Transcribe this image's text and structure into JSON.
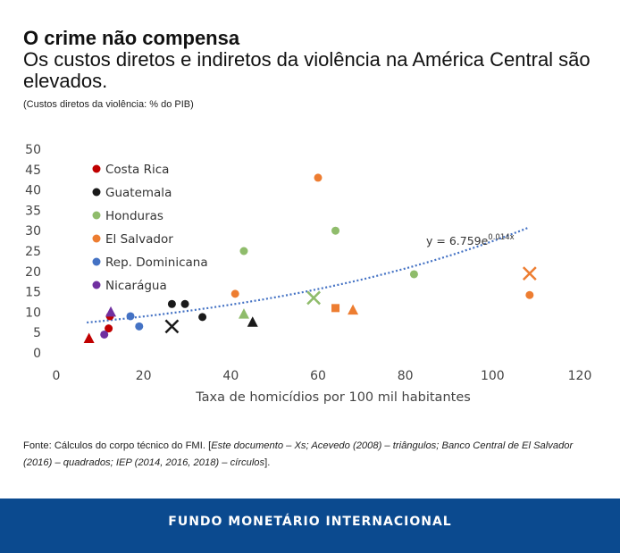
{
  "header": {
    "title": "O crime não compensa",
    "subtitle": "Os custos diretos e indiretos da violência na América Central são elevados.",
    "note": "(Custos diretos da violência: % do PIB)"
  },
  "chart_data": {
    "type": "scatter",
    "xlabel": "Taxa de homicídios por 100 mil habitantes",
    "ylabel": "",
    "xlim": [
      0,
      120
    ],
    "ylim": [
      0,
      50
    ],
    "xticks": [
      0,
      20,
      40,
      60,
      80,
      100,
      120
    ],
    "yticks": [
      0,
      5,
      10,
      15,
      20,
      25,
      30,
      35,
      40,
      45,
      50
    ],
    "grid": false,
    "legend_position": "top-left",
    "series": [
      {
        "name": "Costa Rica",
        "color": "#c00000",
        "points": [
          {
            "x": 7.5,
            "y": 3.5,
            "marker": "triangle"
          },
          {
            "x": 12,
            "y": 6,
            "marker": "circle"
          },
          {
            "x": 12.3,
            "y": 9,
            "marker": "circle"
          }
        ]
      },
      {
        "name": "Guatemala",
        "color": "#1a1a1a",
        "points": [
          {
            "x": 26.5,
            "y": 6.5,
            "marker": "x"
          },
          {
            "x": 26.5,
            "y": 12,
            "marker": "circle"
          },
          {
            "x": 29.5,
            "y": 12,
            "marker": "circle"
          },
          {
            "x": 33.5,
            "y": 8.8,
            "marker": "circle"
          },
          {
            "x": 45,
            "y": 7.5,
            "marker": "triangle"
          }
        ]
      },
      {
        "name": "Honduras",
        "color": "#8fbc6b",
        "points": [
          {
            "x": 43,
            "y": 25,
            "marker": "circle"
          },
          {
            "x": 43,
            "y": 9.5,
            "marker": "triangle"
          },
          {
            "x": 59,
            "y": 13.5,
            "marker": "x"
          },
          {
            "x": 64,
            "y": 30,
            "marker": "circle"
          },
          {
            "x": 82,
            "y": 19.3,
            "marker": "circle"
          }
        ]
      },
      {
        "name": "El Salvador",
        "color": "#ed7d31",
        "points": [
          {
            "x": 41,
            "y": 14.5,
            "marker": "circle"
          },
          {
            "x": 60,
            "y": 43,
            "marker": "circle"
          },
          {
            "x": 64,
            "y": 11,
            "marker": "square"
          },
          {
            "x": 68,
            "y": 10.5,
            "marker": "triangle"
          },
          {
            "x": 108.5,
            "y": 19.5,
            "marker": "x"
          },
          {
            "x": 108.5,
            "y": 14.2,
            "marker": "circle"
          }
        ]
      },
      {
        "name": "Rep. Dominicana",
        "color": "#4472c4",
        "points": [
          {
            "x": 17,
            "y": 9,
            "marker": "circle"
          },
          {
            "x": 19,
            "y": 6.5,
            "marker": "circle"
          }
        ]
      },
      {
        "name": "Nicarágua",
        "color": "#7030a0",
        "points": [
          {
            "x": 11,
            "y": 4.5,
            "marker": "circle"
          },
          {
            "x": 12.5,
            "y": 10,
            "marker": "triangle"
          }
        ]
      }
    ],
    "trendline": {
      "base": "y = 6.759e",
      "exponent": "0.014x",
      "a": 6.759,
      "b": 0.014,
      "x_from": 7,
      "x_to": 108,
      "color": "#4472c4"
    }
  },
  "source": {
    "lead": "Fonte: Cálculos do corpo técnico do FMI. [",
    "italic": "Este documento – Xs; Acevedo (2008) – triângulos; Banco Central de El Salvador (2016) – quadrados; IEP (2014, 2016, 2018) – círculos",
    "tail": "]."
  },
  "footer": {
    "text": "FUNDO MONETÁRIO INTERNACIONAL",
    "color": "#0b4a8f"
  }
}
